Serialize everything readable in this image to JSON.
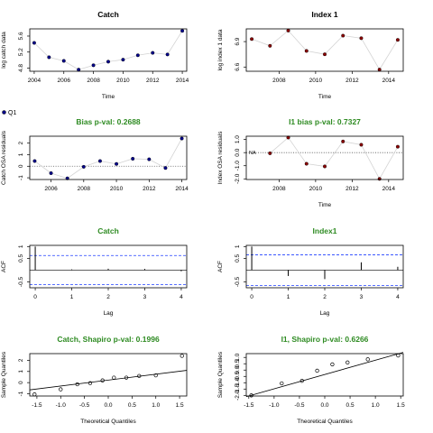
{
  "colors": {
    "green_title": "#2e8b22",
    "point_fill": "#00008b",
    "ref_fill": "#8b0000",
    "dash_blue": "#1f3fff",
    "line_grey": "#d3d3d3",
    "ink": "#000000"
  },
  "legend": {
    "marker": "point",
    "label": "Q1"
  },
  "chart_data": [
    {
      "id": "p1",
      "type": "line",
      "title": "Catch",
      "title_color": "black",
      "xlabel": "Time",
      "ylabel": "log catch data",
      "xlim": [
        2003.7,
        2014.3
      ],
      "ylim": [
        4.72,
        5.78
      ],
      "xticks": [
        2004,
        2006,
        2008,
        2010,
        2012,
        2014
      ],
      "yticks": [
        {
          "v": 4.8,
          "t": "4.8"
        },
        {
          "v": 5.2,
          "t": "5.2"
        },
        {
          "v": 5.6,
          "t": "5.6"
        }
      ],
      "series": [
        {
          "x": [
            2004,
            2005,
            2006,
            2007,
            2008,
            2009,
            2010,
            2011,
            2012,
            2013,
            2014
          ],
          "y": [
            5.43,
            5.07,
            4.98,
            4.76,
            4.87,
            4.96,
            5.01,
            5.12,
            5.18,
            5.14,
            5.73
          ]
        }
      ]
    },
    {
      "id": "p2",
      "type": "line",
      "title": "Index 1",
      "title_color": "black",
      "xlabel": "Time",
      "ylabel": "log index 1 data",
      "xlim": [
        2006.2,
        2014.8
      ],
      "ylim": [
        6.55,
        7.05
      ],
      "xticks": [
        2008,
        2010,
        2012,
        2014
      ],
      "yticks": [
        {
          "v": 6.6,
          "t": "6.6"
        },
        {
          "v": 6.9,
          "t": "6.9"
        }
      ],
      "series": [
        {
          "x": [
            2006.5,
            2007.5,
            2008.5,
            2009.5,
            2010.5,
            2011.5,
            2012.5,
            2013.5,
            2014.5
          ],
          "y": [
            6.93,
            6.85,
            7.03,
            6.79,
            6.75,
            6.97,
            6.94,
            6.57,
            6.92
          ]
        }
      ]
    },
    {
      "id": "p3",
      "type": "residual",
      "title": "Bias p-val: 0.2688",
      "title_color": "green",
      "xlabel": "",
      "ylabel": "Catch OSA residuals",
      "xlim": [
        2004.7,
        2014.3
      ],
      "ylim": [
        -1.15,
        2.6
      ],
      "xticks": [
        2006,
        2008,
        2010,
        2012,
        2014
      ],
      "yticks": [
        {
          "v": -1,
          "t": "-1"
        },
        {
          "v": 0,
          "t": "0"
        },
        {
          "v": 1,
          "t": "1"
        },
        {
          "v": 2,
          "t": "2"
        }
      ],
      "series": [
        {
          "x": [
            2005,
            2006,
            2007,
            2008,
            2009,
            2010,
            2011,
            2012,
            2013,
            2014
          ],
          "y": [
            0.45,
            -0.6,
            -1.05,
            -0.05,
            0.45,
            0.2,
            0.65,
            0.6,
            -0.15,
            2.4
          ]
        }
      ]
    },
    {
      "id": "p4",
      "type": "residual",
      "title": "I1 bias p-val: 0.7327",
      "title_color": "green",
      "xlabel": "Time",
      "ylabel": "Index OSA residuals",
      "na_label": "NA",
      "xlim": [
        2006.2,
        2014.8
      ],
      "ylim": [
        -2.05,
        1.25
      ],
      "xticks": [
        2008,
        2010,
        2012,
        2014
      ],
      "yticks": [
        {
          "v": -2.0,
          "t": "-2.0"
        },
        {
          "v": -1.0,
          "t": "-1.0"
        },
        {
          "v": 0.0,
          "t": "0.0"
        },
        {
          "v": 1.0,
          "t": "1.0"
        }
      ],
      "series": [
        {
          "x": [
            2007.5,
            2008.5,
            2009.5,
            2010.5,
            2011.5,
            2012.5,
            2013.5,
            2014.5
          ],
          "y": [
            -0.05,
            1.15,
            -0.85,
            -1.05,
            0.85,
            0.6,
            -2.0,
            0.45
          ]
        }
      ]
    },
    {
      "id": "p5",
      "type": "acf",
      "title": "Catch",
      "title_color": "green",
      "xlabel": "Lag",
      "ylabel": "ACF",
      "xlim": [
        -0.15,
        4.15
      ],
      "ylim": [
        -0.75,
        1.05
      ],
      "xticks": [
        0,
        1,
        2,
        3,
        4
      ],
      "yticks": [
        {
          "v": -0.5,
          "t": "-0.5"
        },
        {
          "v": 0.5,
          "t": "0.5"
        },
        {
          "v": 1,
          "t": "1"
        }
      ],
      "bounds": 0.62,
      "lags": [
        0,
        1,
        2,
        3,
        4
      ],
      "values": [
        1.0,
        0.03,
        0.06,
        0.05,
        -0.05
      ]
    },
    {
      "id": "p6",
      "type": "acf",
      "title": "Index1",
      "title_color": "green",
      "xlabel": "Lag",
      "ylabel": "ACF",
      "xlim": [
        -0.15,
        4.15
      ],
      "ylim": [
        -0.75,
        1.05
      ],
      "xticks": [
        0,
        1,
        2,
        3,
        4
      ],
      "yticks": [
        {
          "v": -0.5,
          "t": "-0.5"
        },
        {
          "v": 0.5,
          "t": "0.5"
        },
        {
          "v": 1,
          "t": "1"
        }
      ],
      "bounds": 0.65,
      "lags": [
        0,
        1,
        2,
        3,
        4
      ],
      "values": [
        1.0,
        -0.25,
        -0.38,
        0.33,
        0.14
      ]
    },
    {
      "id": "p7",
      "type": "qq",
      "title": "Catch, Shapiro p-val: 0.1996",
      "title_color": "green",
      "xlabel": "Theoretical Quantiles",
      "ylabel": "Sample Quantiles",
      "xlim": [
        -1.65,
        1.65
      ],
      "ylim": [
        -1.2,
        2.6
      ],
      "xticks": [
        {
          "v": -1.5,
          "t": "-1.5"
        },
        {
          "v": -1.0,
          "t": "-1.0"
        },
        {
          "v": -0.5,
          "t": "-0.5"
        },
        {
          "v": 0.0,
          "t": "0.0"
        },
        {
          "v": 0.5,
          "t": "0.5"
        },
        {
          "v": 1.0,
          "t": "1.0"
        },
        {
          "v": 1.5,
          "t": "1.5"
        }
      ],
      "yticks": [
        {
          "v": -1,
          "t": "-1"
        },
        {
          "v": 0,
          "t": "0"
        },
        {
          "v": 1,
          "t": "1"
        },
        {
          "v": 2,
          "t": "2"
        }
      ],
      "x": [
        -1.55,
        -1.0,
        -0.65,
        -0.38,
        -0.12,
        0.12,
        0.38,
        0.65,
        1.0,
        1.55
      ],
      "y": [
        -1.05,
        -0.6,
        -0.15,
        -0.05,
        0.2,
        0.45,
        0.45,
        0.6,
        0.65,
        2.4
      ],
      "line": {
        "x1": -1.65,
        "y1": -0.65,
        "x2": 1.65,
        "y2": 1.1
      }
    },
    {
      "id": "p8",
      "type": "qq",
      "title": "I1, Shapiro p-val: 0.6266",
      "title_color": "green",
      "xlabel": "Theoretical Quantiles",
      "ylabel": "Sample Quantiles",
      "xlim": [
        -1.55,
        1.55
      ],
      "ylim": [
        -2.05,
        1.3
      ],
      "xticks": [
        {
          "v": -1.5,
          "t": "-1.5"
        },
        {
          "v": -1.0,
          "t": "-1.0"
        },
        {
          "v": -0.5,
          "t": "-0.5"
        },
        {
          "v": 0.0,
          "t": "0.0"
        },
        {
          "v": 0.5,
          "t": "0.5"
        },
        {
          "v": 1.0,
          "t": "1.0"
        },
        {
          "v": 1.5,
          "t": "1.5"
        }
      ],
      "yticks": [
        {
          "v": -2.0,
          "t": "-2.0"
        },
        {
          "v": -1.5,
          "t": "-1.5"
        },
        {
          "v": -1.0,
          "t": "-1.0"
        },
        {
          "v": -0.5,
          "t": "-0.5"
        },
        {
          "v": 0.0,
          "t": "0.0"
        },
        {
          "v": 0.5,
          "t": "0.5"
        },
        {
          "v": 1.0,
          "t": "1.0"
        }
      ],
      "x": [
        -1.45,
        -0.85,
        -0.45,
        -0.15,
        0.15,
        0.45,
        0.85,
        1.45
      ],
      "y": [
        -2.0,
        -1.05,
        -0.85,
        -0.05,
        0.45,
        0.6,
        0.85,
        1.15
      ],
      "line": {
        "x1": -1.55,
        "y1": -2.1,
        "x2": 1.55,
        "y2": 1.4
      }
    }
  ]
}
